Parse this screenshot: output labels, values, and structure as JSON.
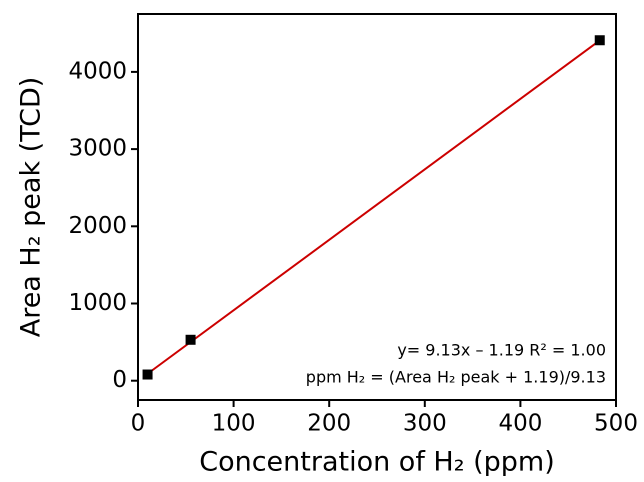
{
  "chart_data": {
    "type": "scatter",
    "x_label": "Concentration of H₂ (ppm)",
    "y_label": "Area H₂ peak (TCD)",
    "x": [
      10,
      55,
      483
    ],
    "values": [
      80,
      530,
      4410
    ],
    "color": "#000000",
    "fit": {
      "x": [
        10,
        483
      ],
      "values": [
        90,
        4408
      ],
      "color": "#cc0000"
    },
    "annotations": [
      "y= 9.13x – 1.19   R² = 1.00",
      "ppm H₂ = (Area H₂ peak + 1.19)/9.13"
    ],
    "xlim": [
      0,
      500
    ],
    "xticks": [
      0,
      100,
      200,
      300,
      400,
      500
    ],
    "ylim": [
      -250,
      4750
    ],
    "yticks": [
      0,
      1000,
      2000,
      3000,
      4000
    ]
  }
}
